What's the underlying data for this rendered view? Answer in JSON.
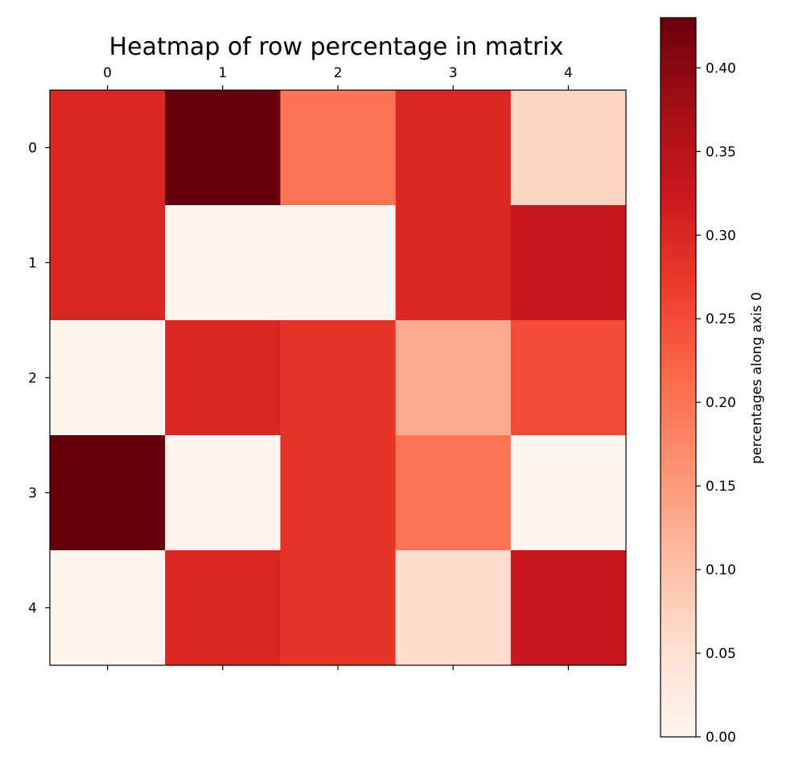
{
  "chart_data": {
    "type": "heatmap",
    "title": "Heatmap of row percentage in matrix",
    "x_ticks": [
      "0",
      "1",
      "2",
      "3",
      "4"
    ],
    "y_ticks": [
      "0",
      "1",
      "2",
      "3",
      "4"
    ],
    "x_tick_position": "top",
    "values": [
      [
        0.3,
        0.43,
        0.2,
        0.3,
        0.07
      ],
      [
        0.3,
        0.0,
        0.0,
        0.3,
        0.33
      ],
      [
        0.0,
        0.3,
        0.28,
        0.13,
        0.25
      ],
      [
        0.43,
        0.0,
        0.28,
        0.2,
        0.0
      ],
      [
        0.0,
        0.3,
        0.28,
        0.06,
        0.33
      ]
    ],
    "colormap": "Reds",
    "vmin": 0.0,
    "vmax": 0.43,
    "colorbar": {
      "label": "percentages along axis 0",
      "ticks": [
        0.0,
        0.05,
        0.1,
        0.15,
        0.2,
        0.25,
        0.3,
        0.35,
        0.4
      ],
      "tick_labels": [
        "0.00",
        "0.05",
        "0.10",
        "0.15",
        "0.20",
        "0.25",
        "0.30",
        "0.35",
        "0.40"
      ]
    },
    "grid": false
  }
}
